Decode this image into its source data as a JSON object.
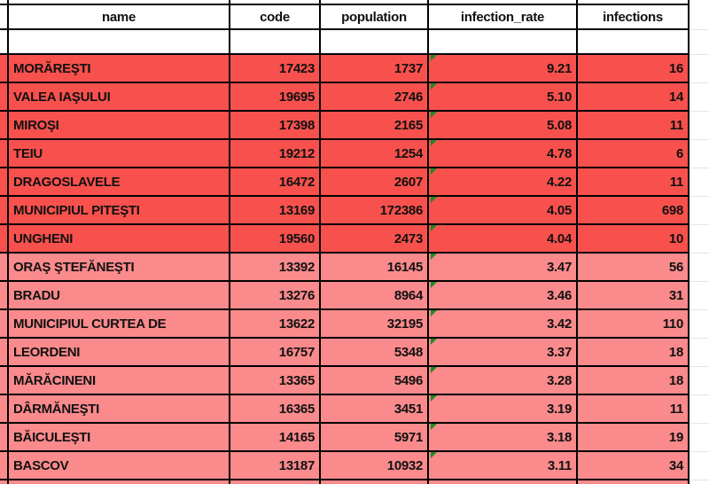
{
  "app": {
    "kind": "spreadsheet-table"
  },
  "table": {
    "headers": [
      "name",
      "code",
      "population",
      "infection_rate",
      "infections"
    ],
    "rows": [
      {
        "name": "MORĂREŞTI",
        "code": "17423",
        "population": "1737",
        "infection_rate": "9.21",
        "infections": "16",
        "tier": "dark"
      },
      {
        "name": "VALEA IAŞULUI",
        "code": "19695",
        "population": "2746",
        "infection_rate": "5.10",
        "infections": "14",
        "tier": "dark"
      },
      {
        "name": "MIROŞI",
        "code": "17398",
        "population": "2165",
        "infection_rate": "5.08",
        "infections": "11",
        "tier": "dark"
      },
      {
        "name": "TEIU",
        "code": "19212",
        "population": "1254",
        "infection_rate": "4.78",
        "infections": "6",
        "tier": "dark"
      },
      {
        "name": "DRAGOSLAVELE",
        "code": "16472",
        "population": "2607",
        "infection_rate": "4.22",
        "infections": "11",
        "tier": "dark"
      },
      {
        "name": "MUNICIPIUL PITEŞTI",
        "code": "13169",
        "population": "172386",
        "infection_rate": "4.05",
        "infections": "698",
        "tier": "dark"
      },
      {
        "name": "UNGHENI",
        "code": "19560",
        "population": "2473",
        "infection_rate": "4.04",
        "infections": "10",
        "tier": "dark"
      },
      {
        "name": "ORAŞ ŞTEFĂNEŞTI",
        "code": "13392",
        "population": "16145",
        "infection_rate": "3.47",
        "infections": "56",
        "tier": "light"
      },
      {
        "name": "BRADU",
        "code": "13276",
        "population": "8964",
        "infection_rate": "3.46",
        "infections": "31",
        "tier": "light"
      },
      {
        "name": "MUNICIPIUL CURTEA DE",
        "code": "13622",
        "population": "32195",
        "infection_rate": "3.42",
        "infections": "110",
        "tier": "light"
      },
      {
        "name": "LEORDENI",
        "code": "16757",
        "population": "5348",
        "infection_rate": "3.37",
        "infections": "18",
        "tier": "light"
      },
      {
        "name": "MĂRĂCINENI",
        "code": "13365",
        "population": "5496",
        "infection_rate": "3.28",
        "infections": "18",
        "tier": "light"
      },
      {
        "name": "DÂRMĂNEŞTI",
        "code": "16365",
        "population": "3451",
        "infection_rate": "3.19",
        "infections": "11",
        "tier": "light"
      },
      {
        "name": "BĂICULEŞTI",
        "code": "14165",
        "population": "5971",
        "infection_rate": "3.18",
        "infections": "19",
        "tier": "light"
      },
      {
        "name": "BASCOV",
        "code": "13187",
        "population": "10932",
        "infection_rate": "3.11",
        "infections": "34",
        "tier": "light"
      }
    ],
    "clipped_bottom_row_tier": "light"
  },
  "icons": {
    "error_indicator": "green-triangle-top-left"
  },
  "colors": {
    "fill_dark": "#f8514d",
    "fill_light": "#fa8a8c",
    "grid_border": "#000000",
    "sheet_gridline": "#dce6f0",
    "error_indicator_green": "#1e8c1e"
  }
}
